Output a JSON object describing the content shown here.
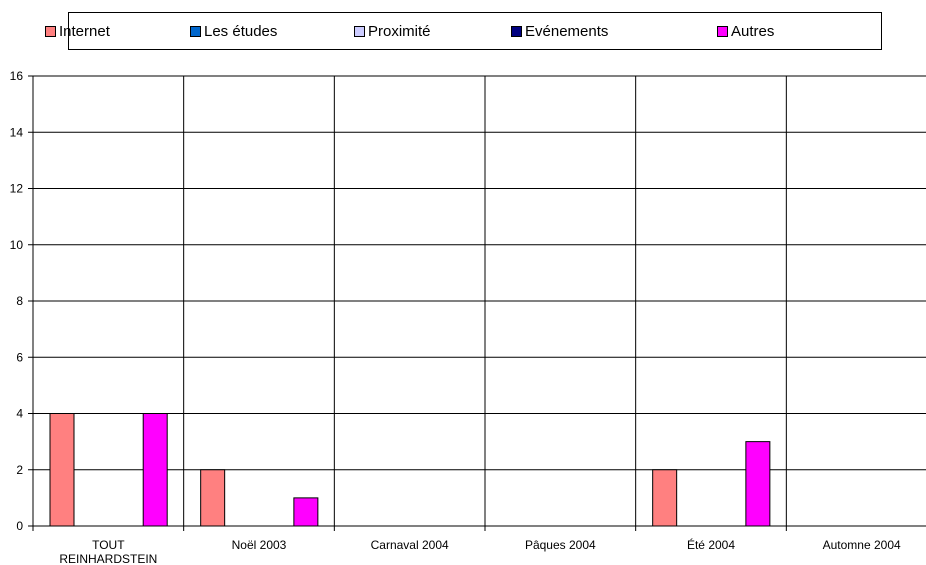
{
  "chart_data": {
    "type": "bar",
    "categories": [
      [
        "TOUT",
        "REINHARDSTEIN"
      ],
      [
        "Noël 2003"
      ],
      [
        "Carnaval 2004"
      ],
      [
        "Pâques 2004"
      ],
      [
        "Été 2004"
      ],
      [
        "Automne 2004"
      ]
    ],
    "series": [
      {
        "name": "Internet",
        "values": [
          4,
          2,
          0,
          0,
          2,
          0
        ],
        "color": "#FF8080"
      },
      {
        "name": "Les études",
        "values": [
          0,
          0,
          0,
          0,
          0,
          0
        ],
        "color": "#0066CC"
      },
      {
        "name": "Proximité",
        "values": [
          0,
          0,
          0,
          0,
          0,
          0
        ],
        "color": "#CCCCFF"
      },
      {
        "name": "Evénements",
        "values": [
          0,
          0,
          0,
          0,
          0,
          0
        ],
        "color": "#000080"
      },
      {
        "name": "Autres",
        "values": [
          4,
          1,
          0,
          0,
          3,
          0
        ],
        "color": "#FF00FF"
      }
    ],
    "yticks": [
      "0",
      "2",
      "4",
      "6",
      "8",
      "10",
      "12",
      "14",
      "16"
    ],
    "ylim": [
      0,
      16
    ],
    "grid": true,
    "legend_position": "top"
  }
}
